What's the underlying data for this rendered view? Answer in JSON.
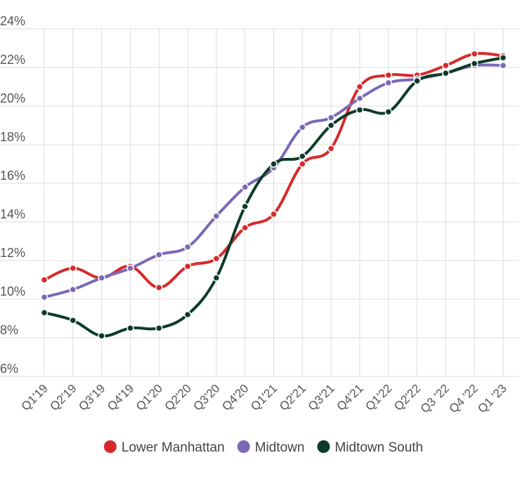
{
  "chart_data": {
    "type": "line",
    "title": "",
    "xlabel": "",
    "ylabel": "",
    "ylim": [
      6,
      24
    ],
    "y_ticks": [
      6,
      8,
      10,
      12,
      14,
      16,
      18,
      20,
      22,
      24
    ],
    "y_tick_suffix": "%",
    "grid": true,
    "legend_position": "bottom",
    "categories": [
      "Q1'19",
      "Q2'19",
      "Q3'19",
      "Q4'19",
      "Q1'20",
      "Q2'20",
      "Q3'20",
      "Q4'20",
      "Q1'21",
      "Q2'21",
      "Q3'21",
      "Q4'21",
      "Q1'22",
      "Q2'22",
      "Q3 '22",
      "Q4 '22",
      "Q1 '23"
    ],
    "series": [
      {
        "name": "Lower Manhattan",
        "color": "#d62a2a",
        "values": [
          11.0,
          11.6,
          11.1,
          11.7,
          10.6,
          11.7,
          12.1,
          13.7,
          14.4,
          17.0,
          17.8,
          21.0,
          21.6,
          21.6,
          22.1,
          22.7,
          22.6
        ]
      },
      {
        "name": "Midtown",
        "color": "#7b68b6",
        "values": [
          10.1,
          10.5,
          11.1,
          11.6,
          12.3,
          12.7,
          14.3,
          15.8,
          16.8,
          18.9,
          19.4,
          20.4,
          21.2,
          21.4,
          21.7,
          22.1,
          22.1
        ]
      },
      {
        "name": "Midtown South",
        "color": "#0d3b2a",
        "values": [
          9.3,
          8.9,
          8.1,
          8.5,
          8.5,
          9.2,
          11.1,
          14.8,
          17.0,
          17.4,
          19.0,
          19.8,
          19.7,
          21.3,
          21.7,
          22.2,
          22.5
        ]
      }
    ]
  }
}
